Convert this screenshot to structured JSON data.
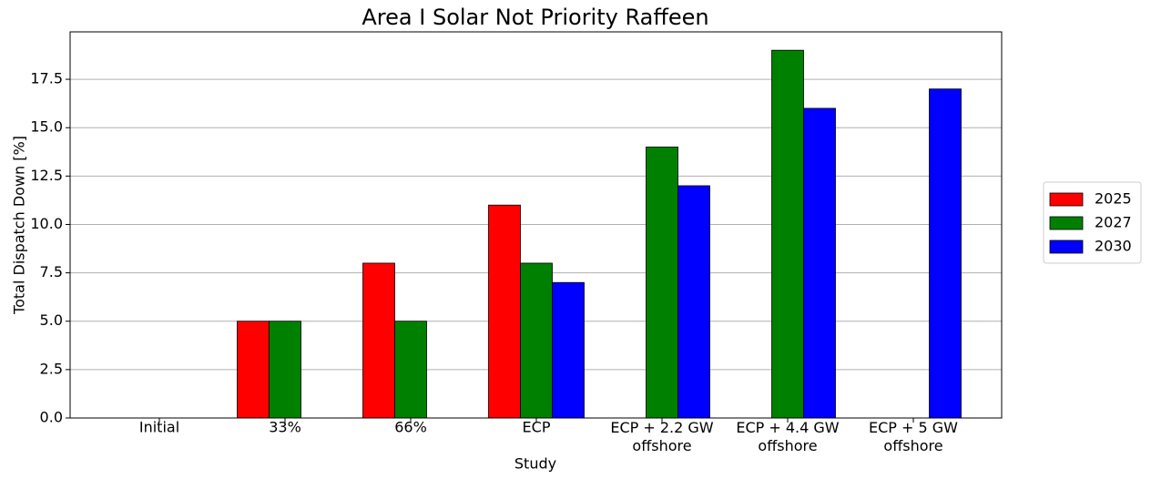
{
  "chart_data": {
    "type": "bar",
    "title": "Area I Solar Not Priority Raffeen",
    "x_label": "Study",
    "y_label": "Total Dispatch Down [%]",
    "categories": [
      "Initial",
      "33%",
      "66%",
      "ECP",
      "ECP + 2.2 GW\noffshore",
      "ECP + 4.4 GW\noffshore",
      "ECP + 5 GW\noffshore"
    ],
    "series": [
      {
        "name": "2025",
        "color": "#ff0000",
        "values": [
          null,
          5,
          8,
          11,
          null,
          null,
          null
        ]
      },
      {
        "name": "2027",
        "color": "#008000",
        "values": [
          null,
          5,
          5,
          8,
          14,
          19,
          null
        ]
      },
      {
        "name": "2030",
        "color": "#0000ff",
        "values": [
          null,
          null,
          null,
          7,
          12,
          16,
          17
        ]
      }
    ],
    "ylim": [
      0,
      19.95
    ],
    "yticks": [
      {
        "value": 0,
        "label": "0.0"
      },
      {
        "value": 2.5,
        "label": "2.5"
      },
      {
        "value": 5,
        "label": "5.0"
      },
      {
        "value": 7.5,
        "label": "7.5"
      },
      {
        "value": 10,
        "label": "10.0"
      },
      {
        "value": 12.5,
        "label": "12.5"
      },
      {
        "value": 15,
        "label": "15.0"
      },
      {
        "value": 17.5,
        "label": "17.5"
      }
    ],
    "grid": true,
    "legend": "right"
  }
}
